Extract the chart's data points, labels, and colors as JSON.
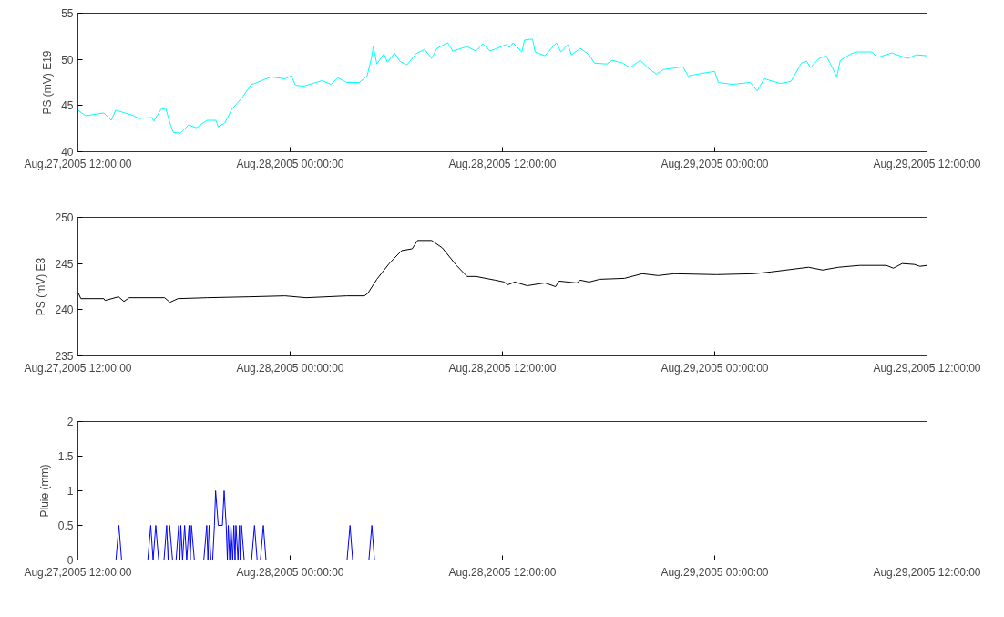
{
  "chart_data": [
    {
      "type": "line",
      "ylabel": "PS (mV) E19",
      "xlim": [
        "2005-08-27T12:00",
        "2005-08-29T12:00"
      ],
      "ylim": [
        40,
        55
      ],
      "yticks": [
        40,
        45,
        50,
        55
      ],
      "xticks": [
        {
          "value": "2005-08-27T12:00",
          "label": "Aug.27,2005 12:00:00"
        },
        {
          "value": "2005-08-28T00:00",
          "label": "Aug.28,2005 00:00:00"
        },
        {
          "value": "2005-08-28T12:00",
          "label": "Aug.28,2005 12:00:00"
        },
        {
          "value": "2005-08-29T00:00",
          "label": "Aug.29,2005 00:00:00"
        },
        {
          "value": "2005-08-29T12:00",
          "label": "Aug.29,2005 12:00:00"
        }
      ],
      "x": [
        "2005-08-27T12:00",
        "2005-08-27T12:26",
        "2005-08-27T13:28",
        "2005-08-27T13:53",
        "2005-08-27T14:08",
        "2005-08-27T15:10",
        "2005-08-27T15:25",
        "2005-08-27T16:12",
        "2005-08-27T16:17",
        "2005-08-27T16:42",
        "2005-08-27T16:58",
        "2005-08-27T17:12",
        "2005-08-27T17:24",
        "2005-08-27T17:48",
        "2005-08-27T18:15",
        "2005-08-27T18:42",
        "2005-08-27T19:18",
        "2005-08-27T19:48",
        "2005-08-27T19:56",
        "2005-08-27T20:18",
        "2005-08-27T20:42",
        "2005-08-27T21:18",
        "2005-08-27T21:48",
        "2005-08-27T22:00",
        "2005-08-27T22:54",
        "2005-08-27T23:42",
        "2005-08-28T00:04",
        "2005-08-28T00:18",
        "2005-08-28T00:46",
        "2005-08-28T01:48",
        "2005-08-28T02:18",
        "2005-08-28T02:42",
        "2005-08-28T03:12",
        "2005-08-28T03:54",
        "2005-08-28T04:21",
        "2005-08-28T04:36",
        "2005-08-28T04:42",
        "2005-08-28T04:54",
        "2005-08-28T05:18",
        "2005-08-28T05:30",
        "2005-08-28T05:54",
        "2005-08-28T06:12",
        "2005-08-28T06:36",
        "2005-08-28T07:06",
        "2005-08-28T07:36",
        "2005-08-28T08:00",
        "2005-08-28T08:18",
        "2005-08-28T08:54",
        "2005-08-28T09:12",
        "2005-08-28T10:00",
        "2005-08-28T10:30",
        "2005-08-28T10:54",
        "2005-08-28T11:18",
        "2005-08-28T12:12",
        "2005-08-28T12:24",
        "2005-08-28T12:36",
        "2005-08-28T13:06",
        "2005-08-28T13:15",
        "2005-08-28T13:42",
        "2005-08-28T13:51",
        "2005-08-28T14:24",
        "2005-08-28T15:03",
        "2005-08-28T15:18",
        "2005-08-28T15:42",
        "2005-08-28T15:54",
        "2005-08-28T16:24",
        "2005-08-28T16:54",
        "2005-08-28T17:12",
        "2005-08-28T17:54",
        "2005-08-28T18:12",
        "2005-08-28T18:48",
        "2005-08-28T19:12",
        "2005-08-28T19:48",
        "2005-08-28T20:12",
        "2005-08-28T20:42",
        "2005-08-28T21:06",
        "2005-08-28T22:12",
        "2005-08-28T22:30",
        "2005-08-28T23:18",
        "2005-08-29T00:00",
        "2005-08-29T00:12",
        "2005-08-29T01:00",
        "2005-08-29T02:00",
        "2005-08-29T02:24",
        "2005-08-29T02:48",
        "2005-08-29T03:42",
        "2005-08-29T04:18",
        "2005-08-29T04:54",
        "2005-08-29T05:12",
        "2005-08-29T05:24",
        "2005-08-29T05:54",
        "2005-08-29T06:18",
        "2005-08-29T06:36",
        "2005-08-29T06:54",
        "2005-08-29T07:06",
        "2005-08-29T07:42",
        "2005-08-29T08:00",
        "2005-08-29T08:54",
        "2005-08-29T09:12",
        "2005-08-29T10:00",
        "2005-08-29T10:54",
        "2005-08-29T11:24",
        "2005-08-29T12:00"
      ],
      "series": [
        {
          "color": "#00ffff",
          "values": [
            44.5,
            43.9,
            44.2,
            43.4,
            44.5,
            43.9,
            43.6,
            43.7,
            43.3,
            44.6,
            44.7,
            43.1,
            42.1,
            42.0,
            42.9,
            42.6,
            43.4,
            43.4,
            42.7,
            43.1,
            44.6,
            45.9,
            47.3,
            47.4,
            48.1,
            47.9,
            48.2,
            47.2,
            47.1,
            47.7,
            47.3,
            48.0,
            47.5,
            47.5,
            48.2,
            50.2,
            51.4,
            49.5,
            50.6,
            49.7,
            50.7,
            49.8,
            49.4,
            50.6,
            51.1,
            50.1,
            51.2,
            51.8,
            50.9,
            51.4,
            50.9,
            51.7,
            50.9,
            51.6,
            51.3,
            51.8,
            50.8,
            52.1,
            52.2,
            50.8,
            50.4,
            51.8,
            50.8,
            51.6,
            50.5,
            51.2,
            50.5,
            49.6,
            49.5,
            49.9,
            49.6,
            49.1,
            49.9,
            49.1,
            48.4,
            48.9,
            49.2,
            48.2,
            48.5,
            48.7,
            47.5,
            47.3,
            47.5,
            46.6,
            47.9,
            47.4,
            47.6,
            49.6,
            49.8,
            49.1,
            50.1,
            50.4,
            49.3,
            48.1,
            49.9,
            50.6,
            50.8,
            50.8,
            50.2,
            50.7,
            50.1,
            50.5,
            50.4
          ]
        }
      ]
    },
    {
      "type": "line",
      "ylabel": "PS (mV) E3",
      "xlim": [
        "2005-08-27T12:00",
        "2005-08-29T12:00"
      ],
      "ylim": [
        235,
        250
      ],
      "yticks": [
        235,
        240,
        245,
        250
      ],
      "xticks": [
        {
          "value": "2005-08-27T12:00",
          "label": "Aug.27,2005 12:00:00"
        },
        {
          "value": "2005-08-28T00:00",
          "label": "Aug.28,2005 00:00:00"
        },
        {
          "value": "2005-08-28T12:00",
          "label": "Aug.28,2005 12:00:00"
        },
        {
          "value": "2005-08-29T00:00",
          "label": "Aug.29,2005 00:00:00"
        },
        {
          "value": "2005-08-29T12:00",
          "label": "Aug.29,2005 12:00:00"
        }
      ],
      "x": [
        "2005-08-27T12:00",
        "2005-08-27T12:10",
        "2005-08-27T13:28",
        "2005-08-27T13:32",
        "2005-08-27T14:18",
        "2005-08-27T14:36",
        "2005-08-27T14:54",
        "2005-08-27T16:54",
        "2005-08-27T17:12",
        "2005-08-27T17:39",
        "2005-08-27T19:18",
        "2005-08-27T21:42",
        "2005-08-27T23:42",
        "2005-08-28T00:54",
        "2005-08-28T03:12",
        "2005-08-28T04:12",
        "2005-08-28T04:24",
        "2005-08-28T04:54",
        "2005-08-28T05:36",
        "2005-08-28T06:18",
        "2005-08-28T06:54",
        "2005-08-28T07:12",
        "2005-08-28T08:00",
        "2005-08-28T08:36",
        "2005-08-28T09:24",
        "2005-08-28T10:00",
        "2005-08-28T10:30",
        "2005-08-28T11:36",
        "2005-08-28T12:06",
        "2005-08-28T12:18",
        "2005-08-28T12:42",
        "2005-08-28T13:24",
        "2005-08-28T14:24",
        "2005-08-28T15:00",
        "2005-08-28T15:12",
        "2005-08-28T16:12",
        "2005-08-28T16:24",
        "2005-08-28T16:54",
        "2005-08-28T17:30",
        "2005-08-28T18:54",
        "2005-08-28T19:54",
        "2005-08-28T20:48",
        "2005-08-28T21:42",
        "2005-08-29T00:06",
        "2005-08-29T02:12",
        "2005-08-29T03:12",
        "2005-08-29T05:18",
        "2005-08-29T06:06",
        "2005-08-29T07:00",
        "2005-08-29T08:12",
        "2005-08-29T09:42",
        "2005-08-29T10:06",
        "2005-08-29T10:36",
        "2005-08-29T11:18",
        "2005-08-29T11:36",
        "2005-08-29T12:00"
      ],
      "series": [
        {
          "color": "#000000",
          "values": [
            241.9,
            241.2,
            241.2,
            241.0,
            241.4,
            240.9,
            241.3,
            241.3,
            240.8,
            241.2,
            241.3,
            241.4,
            241.5,
            241.3,
            241.5,
            241.5,
            241.8,
            243.3,
            245.0,
            246.4,
            246.6,
            247.5,
            247.5,
            246.7,
            244.8,
            243.6,
            243.6,
            243.2,
            243.0,
            242.7,
            243.0,
            242.6,
            242.9,
            242.5,
            243.1,
            242.9,
            243.2,
            243.0,
            243.3,
            243.4,
            243.9,
            243.7,
            243.9,
            243.8,
            243.9,
            244.1,
            244.6,
            244.3,
            244.6,
            244.8,
            244.8,
            244.5,
            245.0,
            244.9,
            244.7,
            244.8
          ]
        }
      ]
    },
    {
      "type": "line",
      "ylabel": "Pluie (mm)",
      "xlim": [
        "2005-08-27T12:00",
        "2005-08-29T12:00"
      ],
      "ylim": [
        0,
        2
      ],
      "yticks": [
        0,
        0.5,
        1,
        1.5,
        2
      ],
      "xticks": [
        {
          "value": "2005-08-27T12:00",
          "label": "Aug.27,2005 12:00:00"
        },
        {
          "value": "2005-08-28T00:00",
          "label": "Aug.28,2005 00:00:00"
        },
        {
          "value": "2005-08-28T12:00",
          "label": "Aug.28,2005 12:00:00"
        },
        {
          "value": "2005-08-29T00:00",
          "label": "Aug.29,2005 00:00:00"
        },
        {
          "value": "2005-08-29T12:00",
          "label": "Aug.29,2005 12:00:00"
        }
      ],
      "x": [
        "2005-08-27T12:00",
        "2005-08-27T14:09",
        "2005-08-27T14:19",
        "2005-08-27T14:28",
        "2005-08-27T15:57",
        "2005-08-27T16:07",
        "2005-08-27T16:15",
        "2005-08-27T16:24",
        "2005-08-27T16:34",
        "2005-08-27T16:52",
        "2005-08-27T17:01",
        "2005-08-27T17:06",
        "2005-08-27T17:11",
        "2005-08-27T17:21",
        "2005-08-27T17:33",
        "2005-08-27T17:42",
        "2005-08-27T17:46",
        "2005-08-27T17:49",
        "2005-08-27T17:55",
        "2005-08-27T18:02",
        "2005-08-27T18:09",
        "2005-08-27T18:17",
        "2005-08-27T18:21",
        "2005-08-27T18:25",
        "2005-08-27T18:35",
        "2005-08-27T19:07",
        "2005-08-27T19:17",
        "2005-08-27T19:21",
        "2005-08-27T19:25",
        "2005-08-27T19:31",
        "2005-08-27T19:37",
        "2005-08-27T19:43",
        "2005-08-27T19:47",
        "2005-08-27T19:56",
        "2005-08-27T20:10",
        "2005-08-27T20:16",
        "2005-08-27T20:23",
        "2005-08-27T20:27",
        "2005-08-27T20:30",
        "2005-08-27T20:35",
        "2005-08-27T20:39",
        "2005-08-27T20:45",
        "2005-08-27T20:49",
        "2005-08-27T20:53",
        "2005-08-27T20:56",
        "2005-08-27T21:03",
        "2005-08-27T21:08",
        "2005-08-27T21:11",
        "2005-08-27T21:15",
        "2005-08-27T21:24",
        "2005-08-27T21:49",
        "2005-08-27T21:59",
        "2005-08-27T22:08",
        "2005-08-27T22:19",
        "2005-08-27T22:29",
        "2005-08-27T22:38",
        "2005-08-28T03:13",
        "2005-08-28T03:23",
        "2005-08-28T03:32",
        "2005-08-28T04:27",
        "2005-08-28T04:37",
        "2005-08-28T04:46",
        "2005-08-29T12:00"
      ],
      "series": [
        {
          "color": "#0000ff",
          "values": [
            0,
            0,
            0.5,
            0,
            0,
            0.5,
            0,
            0.5,
            0,
            0,
            0.5,
            0,
            0.5,
            0,
            0,
            0.5,
            0,
            0.5,
            0,
            0.5,
            0,
            0.5,
            0,
            0.5,
            0,
            0,
            0.5,
            0,
            0.5,
            0,
            0,
            0.5,
            1,
            0.5,
            0.5,
            1,
            0.5,
            0,
            0.5,
            0,
            0.5,
            0,
            0.5,
            0,
            0.5,
            0,
            0.5,
            0,
            0.5,
            0,
            0,
            0.5,
            0,
            0,
            0.5,
            0,
            0,
            0.5,
            0,
            0,
            0.5,
            0,
            0
          ]
        }
      ]
    }
  ]
}
